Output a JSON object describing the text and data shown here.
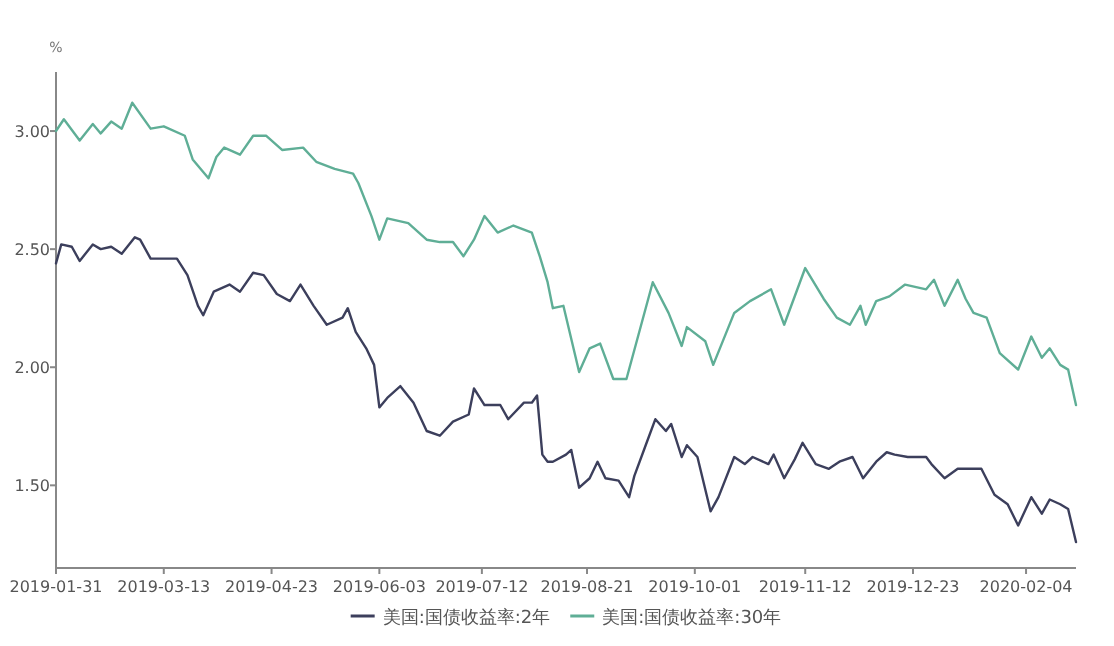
{
  "chart_data": {
    "type": "line",
    "ylabel": "%",
    "legend": "bottom",
    "grid": false,
    "marker": "none",
    "line_style": "solid",
    "xlim": [
      "2019-01-31",
      "2020-02-23"
    ],
    "xticks": [
      {
        "value": "2019-01-31",
        "label": "2019-01-31"
      },
      {
        "value": "2019-03-13",
        "label": "2019-03-13"
      },
      {
        "value": "2019-04-23",
        "label": "2019-04-23"
      },
      {
        "value": "2019-06-03",
        "label": "2019-06-03"
      },
      {
        "value": "2019-07-12",
        "label": "2019-07-12"
      },
      {
        "value": "2019-08-21",
        "label": "2019-08-21"
      },
      {
        "value": "2019-10-01",
        "label": "2019-10-01"
      },
      {
        "value": "2019-11-12",
        "label": "2019-11-12"
      },
      {
        "value": "2019-12-23",
        "label": "2019-12-23"
      },
      {
        "value": "2020-02-04",
        "label": "2020-02-04"
      }
    ],
    "ylim": [
      1.15,
      3.25
    ],
    "yticks": [
      {
        "value": 1.5,
        "label": "1.50"
      },
      {
        "value": 2,
        "label": "2.00"
      },
      {
        "value": 2.5,
        "label": "2.50"
      },
      {
        "value": 3,
        "label": "3.00"
      }
    ],
    "series": [
      {
        "name": "美国:国债收益率:2年",
        "color": "#3c3f5c",
        "x": [
          "2019-01-31",
          "2019-02-02",
          "2019-02-06",
          "2019-02-09",
          "2019-02-14",
          "2019-02-17",
          "2019-02-21",
          "2019-02-25",
          "2019-03-02",
          "2019-03-04",
          "2019-03-08",
          "2019-03-14",
          "2019-03-18",
          "2019-03-22",
          "2019-03-26",
          "2019-03-28",
          "2019-04-01",
          "2019-04-07",
          "2019-04-11",
          "2019-04-16",
          "2019-04-20",
          "2019-04-25",
          "2019-04-30",
          "2019-05-04",
          "2019-05-09",
          "2019-05-14",
          "2019-05-20",
          "2019-05-22",
          "2019-05-25",
          "2019-05-29",
          "2019-06-01",
          "2019-06-03",
          "2019-06-06",
          "2019-06-11",
          "2019-06-16",
          "2019-06-21",
          "2019-06-26",
          "2019-07-01",
          "2019-07-07",
          "2019-07-09",
          "2019-07-13",
          "2019-07-19",
          "2019-07-22",
          "2019-07-28",
          "2019-07-31",
          "2019-08-02",
          "2019-08-04",
          "2019-08-06",
          "2019-08-08",
          "2019-08-13",
          "2019-08-15",
          "2019-08-18",
          "2019-08-22",
          "2019-08-25",
          "2019-08-28",
          "2019-09-02",
          "2019-09-06",
          "2019-09-08",
          "2019-09-12",
          "2019-09-16",
          "2019-09-20",
          "2019-09-22",
          "2019-09-26",
          "2019-09-28",
          "2019-10-02",
          "2019-10-07",
          "2019-10-10",
          "2019-10-16",
          "2019-10-20",
          "2019-10-23",
          "2019-10-29",
          "2019-10-31",
          "2019-11-04",
          "2019-11-08",
          "2019-11-11",
          "2019-11-16",
          "2019-11-21",
          "2019-11-25",
          "2019-11-30",
          "2019-12-04",
          "2019-12-09",
          "2019-12-13",
          "2019-12-16",
          "2019-12-21",
          "2019-12-28",
          "2019-12-30",
          "2020-01-04",
          "2020-01-09",
          "2020-01-14",
          "2020-01-18",
          "2020-01-23",
          "2020-01-28",
          "2020-02-01",
          "2020-02-06",
          "2020-02-10",
          "2020-02-13",
          "2020-02-17",
          "2020-02-20",
          "2020-02-23"
        ],
        "values": [
          2.44,
          2.52,
          2.51,
          2.45,
          2.52,
          2.5,
          2.51,
          2.48,
          2.55,
          2.54,
          2.46,
          2.46,
          2.46,
          2.39,
          2.26,
          2.22,
          2.32,
          2.35,
          2.32,
          2.4,
          2.39,
          2.31,
          2.28,
          2.35,
          2.26,
          2.18,
          2.21,
          2.25,
          2.15,
          2.08,
          2.01,
          1.83,
          1.87,
          1.92,
          1.85,
          1.73,
          1.71,
          1.77,
          1.8,
          1.91,
          1.84,
          1.84,
          1.78,
          1.85,
          1.85,
          1.88,
          1.63,
          1.6,
          1.6,
          1.63,
          1.65,
          1.49,
          1.53,
          1.6,
          1.53,
          1.52,
          1.45,
          1.54,
          1.66,
          1.78,
          1.73,
          1.76,
          1.62,
          1.67,
          1.62,
          1.39,
          1.45,
          1.62,
          1.59,
          1.62,
          1.59,
          1.63,
          1.53,
          1.61,
          1.68,
          1.59,
          1.57,
          1.6,
          1.62,
          1.53,
          1.6,
          1.64,
          1.63,
          1.62,
          1.62,
          1.59,
          1.53,
          1.57,
          1.57,
          1.57,
          1.46,
          1.42,
          1.33,
          1.45,
          1.38,
          1.44,
          1.42,
          1.4,
          1.26
        ]
      },
      {
        "name": "美国:国债收益率:30年",
        "color": "#5fae96",
        "x": [
          "2019-01-31",
          "2019-02-03",
          "2019-02-09",
          "2019-02-14",
          "2019-02-17",
          "2019-02-21",
          "2019-02-25",
          "2019-03-01",
          "2019-03-08",
          "2019-03-13",
          "2019-03-21",
          "2019-03-24",
          "2019-03-30",
          "2019-04-02",
          "2019-04-05",
          "2019-04-11",
          "2019-04-16",
          "2019-04-21",
          "2019-04-27",
          "2019-05-05",
          "2019-05-10",
          "2019-05-17",
          "2019-05-24",
          "2019-05-26",
          "2019-05-31",
          "2019-06-03",
          "2019-06-06",
          "2019-06-14",
          "2019-06-21",
          "2019-06-26",
          "2019-07-01",
          "2019-07-05",
          "2019-07-09",
          "2019-07-13",
          "2019-07-18",
          "2019-07-24",
          "2019-07-31",
          "2019-08-03",
          "2019-08-06",
          "2019-08-08",
          "2019-08-12",
          "2019-08-18",
          "2019-08-22",
          "2019-08-26",
          "2019-08-31",
          "2019-09-05",
          "2019-09-15",
          "2019-09-21",
          "2019-09-26",
          "2019-09-28",
          "2019-10-05",
          "2019-10-08",
          "2019-10-16",
          "2019-10-22",
          "2019-10-30",
          "2019-11-04",
          "2019-11-12",
          "2019-11-19",
          "2019-11-24",
          "2019-11-29",
          "2019-12-03",
          "2019-12-05",
          "2019-12-09",
          "2019-12-14",
          "2019-12-20",
          "2019-12-28",
          "2019-12-31",
          "2020-01-04",
          "2020-01-09",
          "2020-01-12",
          "2020-01-15",
          "2020-01-20",
          "2020-01-25",
          "2020-02-01",
          "2020-02-06",
          "2020-02-10",
          "2020-02-13",
          "2020-02-17",
          "2020-02-20",
          "2020-02-23"
        ],
        "values": [
          3.0,
          3.05,
          2.96,
          3.03,
          2.99,
          3.04,
          3.01,
          3.12,
          3.01,
          3.02,
          2.98,
          2.88,
          2.8,
          2.89,
          2.93,
          2.9,
          2.98,
          2.98,
          2.92,
          2.93,
          2.87,
          2.84,
          2.82,
          2.78,
          2.64,
          2.54,
          2.63,
          2.61,
          2.54,
          2.53,
          2.53,
          2.47,
          2.54,
          2.64,
          2.57,
          2.6,
          2.57,
          2.47,
          2.36,
          2.25,
          2.26,
          1.98,
          2.08,
          2.1,
          1.95,
          1.95,
          2.36,
          2.23,
          2.09,
          2.17,
          2.11,
          2.01,
          2.23,
          2.28,
          2.33,
          2.18,
          2.42,
          2.29,
          2.21,
          2.18,
          2.26,
          2.18,
          2.28,
          2.3,
          2.35,
          2.33,
          2.37,
          2.26,
          2.37,
          2.29,
          2.23,
          2.21,
          2.06,
          1.99,
          2.13,
          2.04,
          2.08,
          2.01,
          1.99,
          1.84
        ]
      }
    ]
  }
}
